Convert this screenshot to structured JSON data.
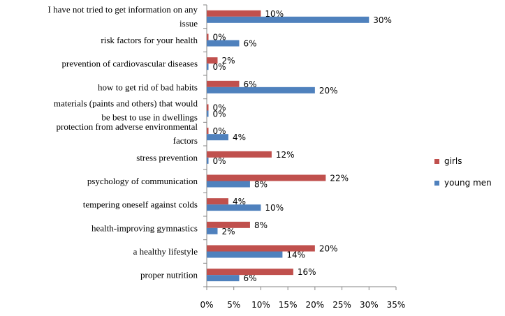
{
  "chart_data": {
    "type": "bar",
    "orientation": "horizontal",
    "title": "",
    "xlabel": "",
    "ylabel": "",
    "xlim": [
      0,
      35
    ],
    "x_ticks": [
      "0%",
      "5%",
      "10%",
      "15%",
      "20%",
      "25%",
      "30%",
      "35%"
    ],
    "grid": false,
    "legend_position": "right",
    "categories": [
      [
        "I have not tried to get information on any",
        "issue"
      ],
      [
        "risk factors for your health"
      ],
      [
        "prevention of cardiovascular diseases"
      ],
      [
        "how to get rid of bad habits"
      ],
      [
        "materials (paints and others) that would",
        "be best to use in dwellings"
      ],
      [
        "protection from adverse environmental",
        "factors"
      ],
      [
        "stress prevention"
      ],
      [
        "psychology of communication"
      ],
      [
        "tempering oneself against colds"
      ],
      [
        "health-improving gymnastics"
      ],
      [
        "a healthy lifestyle"
      ],
      [
        "proper nutrition"
      ]
    ],
    "series": [
      {
        "name": "girls",
        "color": "#C0504D",
        "values": [
          10,
          0,
          2,
          6,
          0,
          0,
          12,
          22,
          4,
          8,
          20,
          16
        ],
        "labels": [
          "10%",
          "0%",
          "2%",
          "6%",
          "0%",
          "0%",
          "12%",
          "22%",
          "4%",
          "8%",
          "20%",
          "16%"
        ]
      },
      {
        "name": "young men",
        "color": "#4F81BD",
        "values": [
          30,
          6,
          0,
          20,
          0,
          4,
          0,
          8,
          10,
          2,
          14,
          6
        ],
        "labels": [
          "30%",
          "6%",
          "0%",
          "20%",
          "0%",
          "4%",
          "0%",
          "8%",
          "10%",
          "2%",
          "14%",
          "6%"
        ]
      }
    ]
  }
}
